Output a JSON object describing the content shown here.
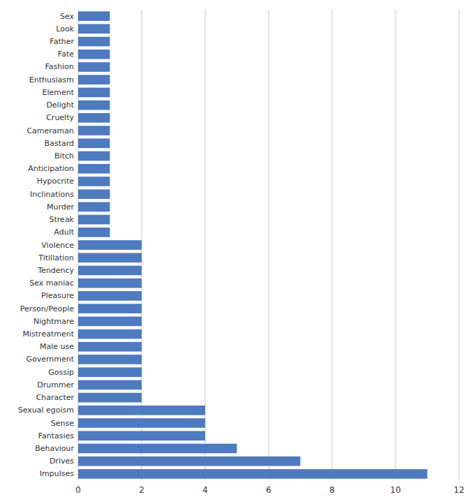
{
  "chart_data": {
    "type": "bar",
    "orientation": "horizontal",
    "categories": [
      "Impulses",
      "Drives",
      "Behaviour",
      "Fantasies",
      "Sense",
      "Sexual egoism",
      "Character",
      "Drummer",
      "Gossip",
      "Government",
      "Male use",
      "Mistreatment",
      "Nightmare",
      "Person/People",
      "Pleasure",
      "Sex maniac",
      "Tendency",
      "Titillation",
      "Violence",
      "Adult",
      "Streak",
      "Murder",
      "Inclinations",
      "Hypocrite",
      "Anticipation",
      "Bitch",
      "Bastard",
      "Cameraman",
      "Cruelty",
      "Delight",
      "Element",
      "Enthusiasm",
      "Fashion",
      "Fate",
      "Father",
      "Look",
      "Sex"
    ],
    "values": [
      11,
      7,
      5,
      4,
      4,
      4,
      2,
      2,
      2,
      2,
      2,
      2,
      2,
      2,
      2,
      2,
      2,
      2,
      2,
      1,
      1,
      1,
      1,
      1,
      1,
      1,
      1,
      1,
      1,
      1,
      1,
      1,
      1,
      1,
      1,
      1,
      1
    ],
    "color": "#4e7abf",
    "xlim": [
      0,
      12
    ],
    "xticks": [
      0,
      2,
      4,
      6,
      8,
      10,
      12
    ],
    "grid": true
  }
}
